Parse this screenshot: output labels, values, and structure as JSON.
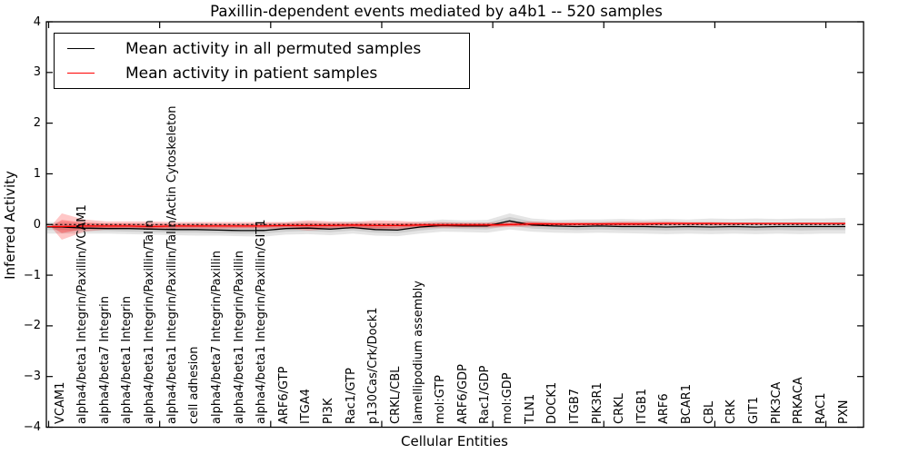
{
  "title": "Paxillin-dependent events mediated by a4b1 -- 520 samples",
  "xlabel": "Cellular Entities",
  "ylabel": "Inferred Activity",
  "legend": [
    {
      "label": "Mean activity in all permuted samples",
      "color": "#000000"
    },
    {
      "label": "Mean activity in patient samples",
      "color": "#ff0000"
    }
  ],
  "chart_data": {
    "type": "line",
    "title": "Paxillin-dependent events mediated by a4b1 -- 520 samples",
    "xlabel": "Cellular Entities",
    "ylabel": "Inferred Activity",
    "ylim": [
      -4,
      4
    ],
    "yticks": [
      -4,
      -3,
      -2,
      -1,
      0,
      1,
      2,
      3,
      4
    ],
    "grid": false,
    "legend_position": "upper left",
    "zero_line": {
      "y": 0,
      "style": "dashed",
      "color": "#000000"
    },
    "categories": [
      "VCAM1",
      "alpha4/beta1 Integrin/Paxillin/VCAM1",
      "alpha4/beta7 Integrin",
      "alpha4/beta1 Integrin",
      "alpha4/beta1 Integrin/Paxillin/Talin",
      "alpha4/beta1 Integrin/Paxillin/Talin/Actin Cytoskeleton",
      "cell adhesion",
      "alpha4/beta7 Integrin/Paxillin",
      "alpha4/beta1 Integrin/Paxillin",
      "alpha4/beta1 Integrin/Paxillin/GIT1",
      "ARF6/GTP",
      "ITGA4",
      "PI3K",
      "Rac1/GTP",
      "p130Cas/Crk/Dock1",
      "CRKL/CBL",
      "lamellipodium assembly",
      "mol:GTP",
      "ARF6/GDP",
      "Rac1/GDP",
      "mol:GDP",
      "TLN1",
      "DOCK1",
      "ITGB7",
      "PIK3R1",
      "CRKL",
      "ITGB1",
      "ARF6",
      "BCAR1",
      "CBL",
      "CRK",
      "GIT1",
      "PIK3CA",
      "PRKACA",
      "RAC1",
      "PXN"
    ],
    "series": [
      {
        "name": "Mean activity in all permuted samples",
        "color": "#000000",
        "values": [
          -0.05,
          -0.07,
          -0.08,
          -0.08,
          -0.09,
          -0.1,
          -0.1,
          -0.11,
          -0.12,
          -0.12,
          -0.08,
          -0.07,
          -0.09,
          -0.06,
          -0.1,
          -0.11,
          -0.05,
          -0.02,
          -0.03,
          -0.03,
          0.07,
          -0.01,
          -0.03,
          -0.04,
          -0.03,
          -0.04,
          -0.04,
          -0.05,
          -0.04,
          -0.05,
          -0.04,
          -0.05,
          -0.04,
          -0.04,
          -0.04,
          -0.04
        ]
      },
      {
        "name": "Mean activity in patient samples",
        "color": "#ff0000",
        "values": [
          -0.04,
          -0.03,
          -0.03,
          -0.03,
          -0.04,
          -0.03,
          -0.03,
          -0.03,
          -0.03,
          -0.03,
          -0.02,
          -0.02,
          -0.02,
          -0.01,
          -0.02,
          -0.02,
          -0.01,
          -0.01,
          -0.01,
          -0.01,
          0.0,
          0.01,
          0.01,
          0.01,
          0.01,
          0.01,
          0.01,
          0.02,
          0.02,
          0.02,
          0.02,
          0.02,
          0.02,
          0.02,
          0.02,
          0.02
        ]
      }
    ],
    "bands": [
      {
        "name": "permuted-range",
        "color": "rgba(0,0,0,0.10)",
        "pinch_left": false,
        "upper": [
          0.05,
          0.03,
          0.02,
          0.02,
          0.03,
          0.02,
          0.03,
          0.02,
          0.02,
          0.03,
          0.04,
          0.05,
          0.04,
          0.06,
          0.03,
          0.02,
          0.06,
          0.1,
          0.08,
          0.09,
          0.22,
          0.12,
          0.09,
          0.1,
          0.1,
          0.11,
          0.1,
          0.11,
          0.1,
          0.12,
          0.11,
          0.12,
          0.11,
          0.12,
          0.12,
          0.13
        ],
        "lower": [
          -0.18,
          -0.18,
          -0.18,
          -0.19,
          -0.2,
          -0.21,
          -0.22,
          -0.22,
          -0.23,
          -0.24,
          -0.2,
          -0.19,
          -0.21,
          -0.18,
          -0.22,
          -0.23,
          -0.18,
          -0.14,
          -0.15,
          -0.16,
          -0.1,
          -0.14,
          -0.16,
          -0.17,
          -0.16,
          -0.17,
          -0.18,
          -0.19,
          -0.18,
          -0.19,
          -0.18,
          -0.19,
          -0.18,
          -0.19,
          -0.18,
          -0.18
        ]
      },
      {
        "name": "permuted-inner-range",
        "color": "rgba(0,0,0,0.10)",
        "pinch_left": false,
        "upper": [
          0.0,
          -0.02,
          -0.03,
          -0.03,
          -0.03,
          -0.04,
          -0.04,
          -0.05,
          -0.05,
          -0.05,
          -0.02,
          -0.01,
          -0.03,
          0.0,
          -0.04,
          -0.05,
          0.01,
          0.04,
          0.03,
          0.03,
          0.15,
          0.06,
          0.03,
          0.03,
          0.04,
          0.04,
          0.03,
          0.03,
          0.03,
          0.04,
          0.04,
          0.04,
          0.04,
          0.04,
          0.04,
          0.05
        ],
        "lower": [
          -0.11,
          -0.13,
          -0.13,
          -0.14,
          -0.15,
          -0.16,
          -0.16,
          -0.17,
          -0.18,
          -0.18,
          -0.14,
          -0.13,
          -0.15,
          -0.12,
          -0.16,
          -0.17,
          -0.12,
          -0.08,
          -0.09,
          -0.1,
          -0.02,
          -0.08,
          -0.1,
          -0.11,
          -0.1,
          -0.11,
          -0.11,
          -0.12,
          -0.11,
          -0.12,
          -0.11,
          -0.12,
          -0.11,
          -0.12,
          -0.11,
          -0.11
        ]
      },
      {
        "name": "patient-range",
        "color": "rgba(255,0,0,0.22)",
        "pinch_left": true,
        "upper": [
          0.22,
          0.1,
          0.06,
          0.06,
          0.06,
          0.05,
          0.05,
          0.05,
          0.05,
          0.05,
          0.05,
          0.08,
          0.06,
          0.05,
          0.08,
          0.07,
          0.05,
          0.05,
          0.04,
          0.04,
          0.05,
          0.06,
          0.05,
          0.05,
          0.05,
          0.06,
          0.06,
          0.06,
          0.05,
          0.05,
          0.04,
          0.04,
          0.04,
          0.04,
          0.04,
          0.04
        ],
        "lower": [
          -0.3,
          -0.14,
          -0.1,
          -0.09,
          -0.1,
          -0.09,
          -0.08,
          -0.09,
          -0.08,
          -0.08,
          -0.08,
          -0.12,
          -0.09,
          -0.08,
          -0.11,
          -0.1,
          -0.07,
          -0.06,
          -0.06,
          -0.06,
          -0.05,
          -0.04,
          -0.04,
          -0.03,
          -0.03,
          -0.03,
          -0.03,
          -0.02,
          -0.02,
          -0.02,
          -0.02,
          -0.01,
          -0.01,
          -0.01,
          -0.01,
          -0.01
        ]
      },
      {
        "name": "patient-inner-range",
        "color": "rgba(255,0,0,0.28)",
        "pinch_left": true,
        "upper": [
          0.09,
          0.04,
          0.02,
          0.02,
          0.01,
          0.01,
          0.01,
          0.01,
          0.01,
          0.01,
          0.02,
          0.03,
          0.02,
          0.02,
          0.03,
          0.03,
          0.02,
          0.02,
          0.02,
          0.02,
          0.03,
          0.04,
          0.03,
          0.03,
          0.03,
          0.04,
          0.04,
          0.04,
          0.04,
          0.04,
          0.03,
          0.03,
          0.03,
          0.03,
          0.03,
          0.03
        ],
        "lower": [
          -0.17,
          -0.09,
          -0.07,
          -0.06,
          -0.07,
          -0.06,
          -0.06,
          -0.06,
          -0.06,
          -0.06,
          -0.05,
          -0.07,
          -0.06,
          -0.05,
          -0.07,
          -0.06,
          -0.04,
          -0.04,
          -0.04,
          -0.04,
          -0.03,
          -0.02,
          -0.02,
          -0.01,
          -0.01,
          -0.01,
          -0.01,
          0.0,
          0.0,
          0.0,
          0.0,
          0.01,
          0.01,
          0.01,
          0.01,
          0.01
        ]
      }
    ]
  }
}
